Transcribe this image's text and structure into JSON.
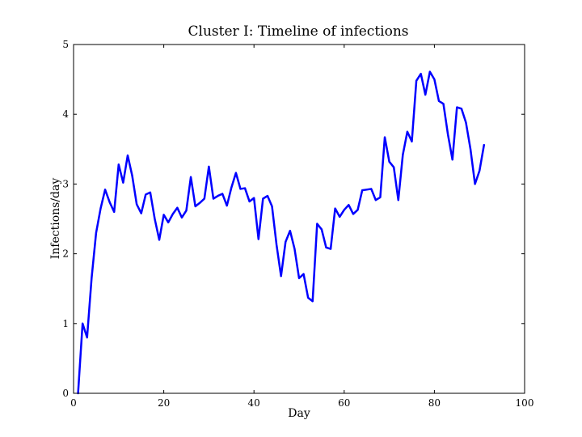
{
  "chart_data": {
    "type": "line",
    "title": "Cluster I: Timeline of infections",
    "xlabel": "Day",
    "ylabel": "Infections/day",
    "xlim": [
      0,
      100
    ],
    "ylim": [
      0,
      5
    ],
    "xticks": [
      0,
      20,
      40,
      60,
      80,
      100
    ],
    "yticks": [
      0,
      1,
      2,
      3,
      4,
      5
    ],
    "grid": false,
    "series": [
      {
        "color": "#0000ff",
        "x": [
          1,
          2,
          3,
          4,
          5,
          6,
          7,
          8,
          9,
          10,
          11,
          12,
          13,
          14,
          15,
          16,
          17,
          18,
          19,
          20,
          21,
          22,
          23,
          24,
          25,
          26,
          27,
          28,
          29,
          30,
          31,
          32,
          33,
          34,
          35,
          36,
          37,
          38,
          39,
          40,
          41,
          42,
          43,
          44,
          45,
          46,
          47,
          48,
          49,
          50,
          51,
          52,
          53,
          54,
          55,
          56,
          57,
          58,
          59,
          60,
          61,
          62,
          63,
          64,
          65,
          66,
          67,
          68,
          69,
          70,
          71,
          72,
          73,
          74,
          75,
          76,
          77,
          78,
          79,
          80,
          81,
          82,
          83,
          84,
          85,
          86,
          87,
          88,
          89,
          90,
          91
        ],
        "y": [
          0.0,
          1.0,
          0.8,
          1.65,
          2.3,
          2.65,
          2.92,
          2.74,
          2.6,
          3.28,
          3.02,
          3.41,
          3.12,
          2.71,
          2.58,
          2.85,
          2.88,
          2.5,
          2.2,
          2.56,
          2.45,
          2.57,
          2.66,
          2.52,
          2.62,
          3.1,
          2.68,
          2.73,
          2.79,
          3.25,
          2.79,
          2.83,
          2.86,
          2.69,
          2.95,
          3.16,
          2.93,
          2.94,
          2.75,
          2.8,
          2.21,
          2.79,
          2.83,
          2.68,
          2.13,
          1.68,
          2.17,
          2.33,
          2.07,
          1.65,
          1.71,
          1.37,
          1.32,
          2.43,
          2.35,
          2.09,
          2.07,
          2.65,
          2.53,
          2.63,
          2.7,
          2.57,
          2.63,
          2.91,
          2.92,
          2.93,
          2.77,
          2.81,
          3.67,
          3.32,
          3.24,
          2.77,
          3.42,
          3.75,
          3.61,
          4.48,
          4.58,
          4.28,
          4.61,
          4.5,
          4.19,
          4.15,
          3.71,
          3.35,
          4.1,
          4.08,
          3.88,
          3.5,
          3.0,
          3.19,
          3.56
        ]
      }
    ]
  }
}
